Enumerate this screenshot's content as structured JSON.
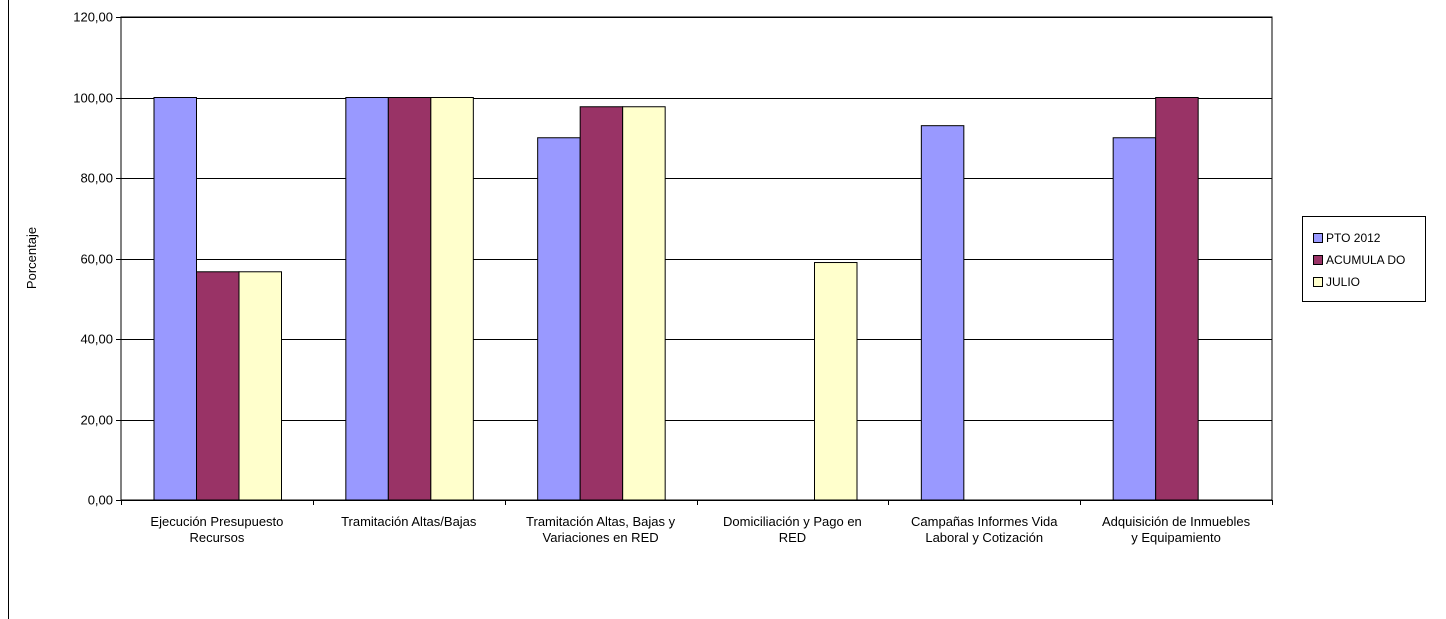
{
  "chart_data": {
    "type": "bar",
    "title": "",
    "xlabel": "",
    "ylabel": "Porcentaje",
    "ylim": [
      0,
      120
    ],
    "yticks": [
      "0,00",
      "20,00",
      "40,00",
      "60,00",
      "80,00",
      "100,00",
      "120,00"
    ],
    "grid": true,
    "legend_position": "right",
    "categories": [
      [
        "Ejecución Presupuesto",
        "Recursos"
      ],
      [
        "Tramitación Altas/Bajas"
      ],
      [
        "Tramitación Altas, Bajas y",
        "Variaciones en RED"
      ],
      [
        "Domiciliación y Pago en",
        "RED"
      ],
      [
        "Campañas Informes Vida",
        "Laboral y Cotización"
      ],
      [
        "Adquisición de Inmuebles",
        "y Equipamiento"
      ]
    ],
    "series": [
      {
        "name": "PTO  2012",
        "color": "#9999ff",
        "values": [
          100,
          100,
          90,
          null,
          93,
          90
        ]
      },
      {
        "name": "ACUMULA DO",
        "color": "#993366",
        "values": [
          56.7,
          100,
          97.7,
          null,
          null,
          100
        ]
      },
      {
        "name": "JULIO",
        "color": "#ffffcc",
        "values": [
          56.7,
          100,
          97.7,
          59,
          null,
          null
        ]
      }
    ]
  }
}
